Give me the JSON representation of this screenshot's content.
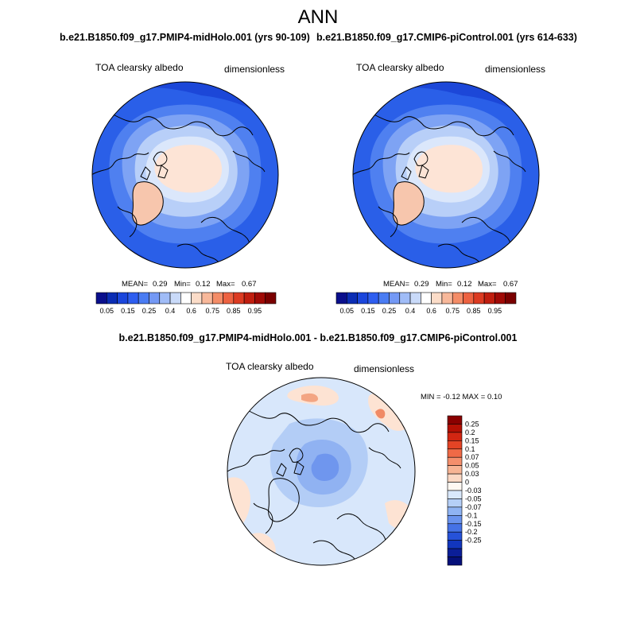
{
  "page": {
    "title": "ANN"
  },
  "panels": [
    {
      "case": "b.e21.B1850.f09_g17.PMIP4-midHolo.001 (yrs 90-109)",
      "variable": "TOA clearsky albedo",
      "units": "dimensionless",
      "stats": {
        "mean_label": "MEAN=",
        "mean": "0.29",
        "min_label": "Min=",
        "min": "0.12",
        "max_label": "Max=",
        "max": "0.67"
      }
    },
    {
      "case": "b.e21.B1850.f09_g17.CMIP6-piControl.001 (yrs 614-633)",
      "variable": "TOA clearsky albedo",
      "units": "dimensionless",
      "stats": {
        "mean_label": "MEAN=",
        "mean": "0.29",
        "min_label": "Min=",
        "min": "0.12",
        "max_label": "Max=",
        "max": "0.67"
      }
    }
  ],
  "diff": {
    "title": "b.e21.B1850.f09_g17.PMIP4-midHolo.001 - b.e21.B1850.f09_g17.CMIP6-piControl.001",
    "variable": "TOA clearsky albedo",
    "units": "dimensionless",
    "minmax": "MIN =  -0.12 MAX =   0.10"
  },
  "chart_data": [
    {
      "type": "heatmap",
      "projection": "north-polar-stereographic",
      "title": "b.e21.B1850.f09_g17.PMIP4-midHolo.001 (yrs 90-109)",
      "field": "TOA clearsky albedo",
      "units": "dimensionless",
      "mean": 0.29,
      "min": 0.12,
      "max": 0.67,
      "colorbar": {
        "orientation": "horizontal",
        "levels": [
          0.05,
          0.1,
          0.15,
          0.2,
          0.25,
          0.3,
          0.35,
          0.4,
          0.5,
          0.6,
          0.65,
          0.7,
          0.75,
          0.8,
          0.85,
          0.9,
          0.95
        ],
        "tick_labels": [
          "0.05",
          "0.15",
          "0.25",
          "0.4",
          "0.6",
          "0.75",
          "0.85",
          "0.95"
        ],
        "colors": [
          "#0a0f8c",
          "#0b2db4",
          "#1b46dc",
          "#2e5ef0",
          "#4a7cf3",
          "#7499f5",
          "#a0bcf7",
          "#c9daf9",
          "#ffffff",
          "#fbdcc8",
          "#f8b89a",
          "#f48c67",
          "#ed6241",
          "#dc3b22",
          "#c01e0f",
          "#a00a06",
          "#7a0000"
        ]
      }
    },
    {
      "type": "heatmap",
      "projection": "north-polar-stereographic",
      "title": "b.e21.B1850.f09_g17.CMIP6-piControl.001 (yrs 614-633)",
      "field": "TOA clearsky albedo",
      "units": "dimensionless",
      "mean": 0.29,
      "min": 0.12,
      "max": 0.67,
      "colorbar": {
        "orientation": "horizontal",
        "levels": [
          0.05,
          0.1,
          0.15,
          0.2,
          0.25,
          0.3,
          0.35,
          0.4,
          0.5,
          0.6,
          0.65,
          0.7,
          0.75,
          0.8,
          0.85,
          0.9,
          0.95
        ],
        "tick_labels": [
          "0.05",
          "0.15",
          "0.25",
          "0.4",
          "0.6",
          "0.75",
          "0.85",
          "0.95"
        ],
        "colors": [
          "#0a0f8c",
          "#0b2db4",
          "#1b46dc",
          "#2e5ef0",
          "#4a7cf3",
          "#7499f5",
          "#a0bcf7",
          "#c9daf9",
          "#ffffff",
          "#fbdcc8",
          "#f8b89a",
          "#f48c67",
          "#ed6241",
          "#dc3b22",
          "#c01e0f",
          "#a00a06",
          "#7a0000"
        ]
      }
    },
    {
      "type": "heatmap",
      "projection": "north-polar-stereographic",
      "title": "b.e21.B1850.f09_g17.PMIP4-midHolo.001 - b.e21.B1850.f09_g17.CMIP6-piControl.001",
      "field": "TOA clearsky albedo",
      "units": "dimensionless",
      "min": -0.12,
      "max": 0.1,
      "colorbar": {
        "orientation": "vertical",
        "tick_labels": [
          "0.25",
          "0.2",
          "0.15",
          "0.1",
          "0.07",
          "0.05",
          "0.03",
          "0",
          "-0.03",
          "-0.05",
          "-0.07",
          "-0.1",
          "-0.15",
          "-0.2",
          "-0.25"
        ],
        "colors": [
          "#8a0000",
          "#b41004",
          "#d22612",
          "#e44425",
          "#ef6a46",
          "#f48f6c",
          "#f7b494",
          "#fbd8c4",
          "#fff8f2",
          "#d9e8fb",
          "#b5cff7",
          "#8fb3f3",
          "#6a93ee",
          "#4572e6",
          "#2652d9",
          "#1236bd",
          "#0b1e98",
          "#05107a"
        ]
      }
    }
  ]
}
